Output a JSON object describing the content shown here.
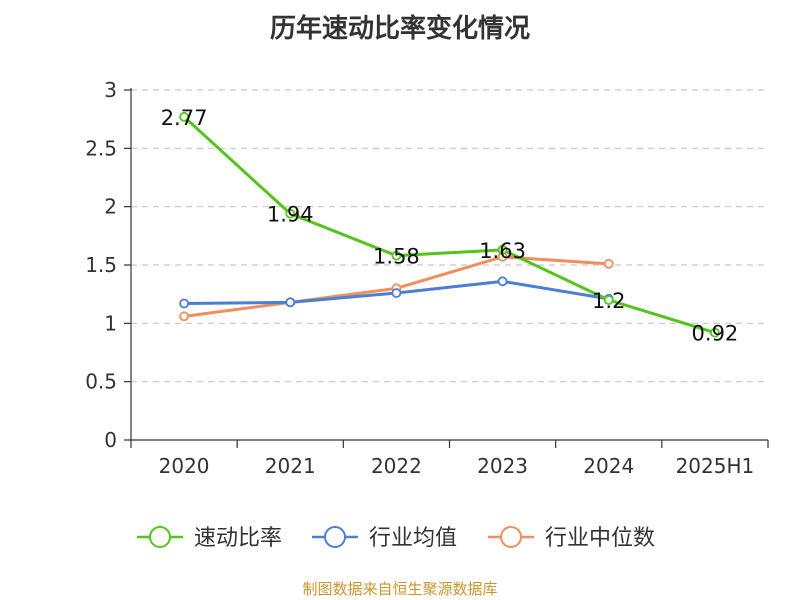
{
  "title": "历年速动比率变化情况",
  "source": "制图数据来自恒生聚源数据库",
  "chart_data": {
    "type": "line",
    "categories": [
      "2020",
      "2021",
      "2022",
      "2023",
      "2024",
      "2025H1"
    ],
    "ylim": [
      0,
      3
    ],
    "yticks": [
      "0",
      "0.5",
      "1",
      "1.5",
      "2",
      "2.5",
      "3"
    ],
    "grid": true,
    "legend_position": "bottom",
    "series": [
      {
        "name": "速动比率",
        "color": "#52c41a",
        "values": [
          2.77,
          1.94,
          1.58,
          1.63,
          1.2,
          0.92
        ],
        "labels": [
          "2.77",
          "1.94",
          "1.58",
          "1.63",
          "1.2",
          "0.92"
        ]
      },
      {
        "name": "行业均值",
        "color": "#4a7fd4",
        "values": [
          1.17,
          1.18,
          1.26,
          1.36,
          1.21,
          null
        ]
      },
      {
        "name": "行业中位数",
        "color": "#f28e5c",
        "values": [
          1.06,
          1.18,
          1.3,
          1.57,
          1.51,
          null
        ]
      }
    ]
  }
}
